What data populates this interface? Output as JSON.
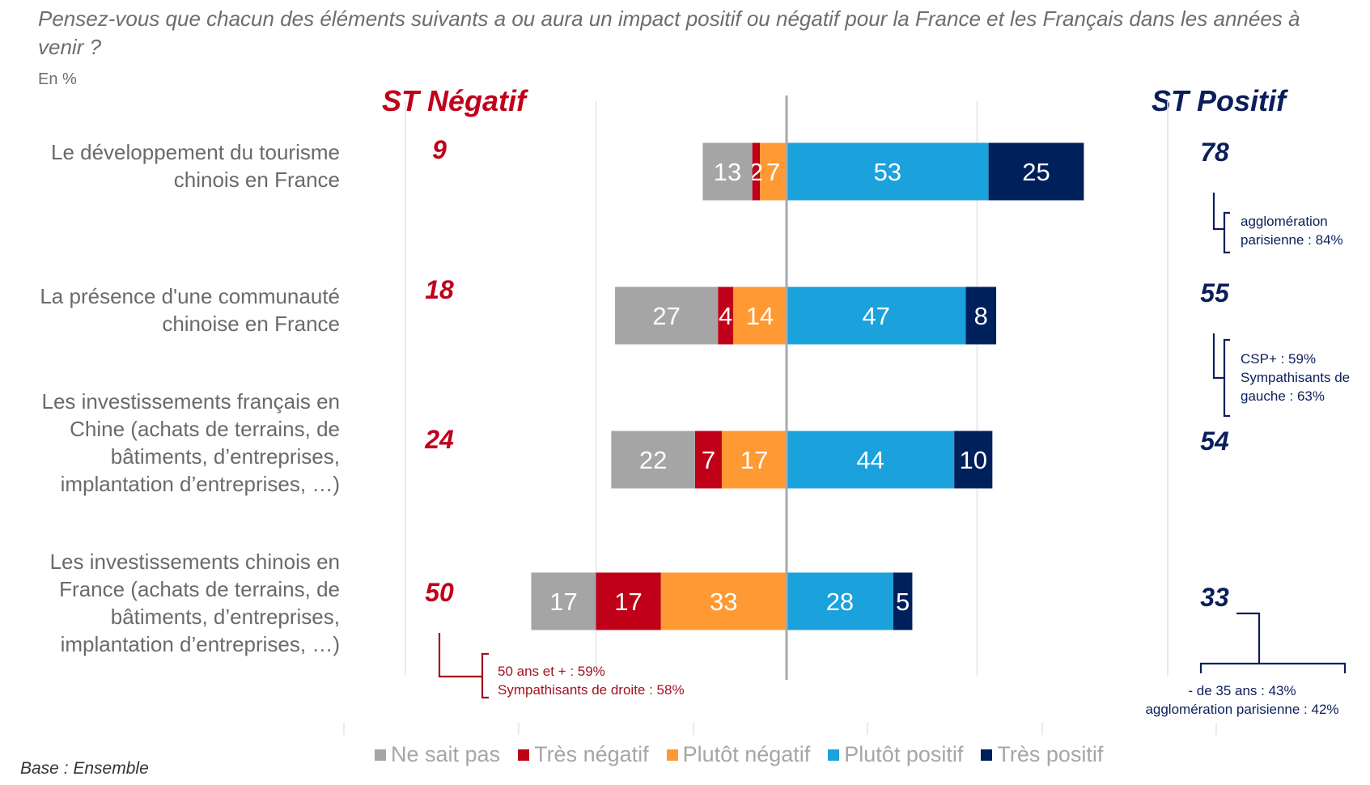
{
  "header": {
    "question": "Pensez-vous que chacun des éléments suivants a ou aura un impact positif ou négatif pour la France et les Français dans les années à venir ?",
    "unit": "En %",
    "st_negatif": "ST Négatif",
    "st_positif": "ST Positif"
  },
  "footer": {
    "base": "Base : Ensemble"
  },
  "notes": {
    "row1_pos": [
      "agglomération",
      "parisienne : 84%"
    ],
    "row2_pos": [
      "CSP+ : 59%",
      "Sympathisants de",
      "gauche : 63%"
    ],
    "row4_neg": [
      "50 ans et + : 59%",
      "Sympathisants de droite : 58%"
    ],
    "row4_pos": [
      "- de 35 ans : 43%",
      "agglomération parisienne : 42%"
    ]
  },
  "chart_data": {
    "type": "bar",
    "orientation": "horizontal-diverging-stacked",
    "title": "Pensez-vous que chacun des éléments suivants a ou aura un impact positif ou négatif pour la France et les Français dans les années à venir ?",
    "unit": "%",
    "xlim": [
      -100,
      100
    ],
    "grid": true,
    "legend_position": "bottom",
    "categories": [
      [
        "Le développement du tourisme",
        "chinois en France"
      ],
      [
        "La présence d'une communauté",
        "chinoise en France"
      ],
      [
        "Les investissements français en",
        "Chine (achats de terrains, de",
        "bâtiments, d’entreprises,",
        "implantation d’entreprises, …)"
      ],
      [
        "Les investissements chinois en",
        "France (achats de terrains, de",
        "bâtiments, d’entreprises,",
        "implantation d’entreprises, …)"
      ]
    ],
    "series": [
      {
        "name": "Ne sait pas",
        "side": "negative",
        "color": "#a5a5a5",
        "values": [
          13,
          27,
          22,
          17
        ]
      },
      {
        "name": "Très négatif",
        "side": "negative",
        "color": "#c00018",
        "values": [
          2,
          4,
          7,
          17
        ]
      },
      {
        "name": "Plutôt négatif",
        "side": "negative",
        "color": "#ff9933",
        "values": [
          7,
          14,
          17,
          33
        ]
      },
      {
        "name": "Plutôt positif",
        "side": "positive",
        "color": "#1ba1dc",
        "values": [
          53,
          47,
          44,
          28
        ]
      },
      {
        "name": "Très positif",
        "side": "positive",
        "color": "#00205b",
        "values": [
          25,
          8,
          10,
          5
        ]
      }
    ],
    "st_negatif": [
      9,
      18,
      24,
      50
    ],
    "st_positif": [
      78,
      55,
      54,
      33
    ]
  }
}
